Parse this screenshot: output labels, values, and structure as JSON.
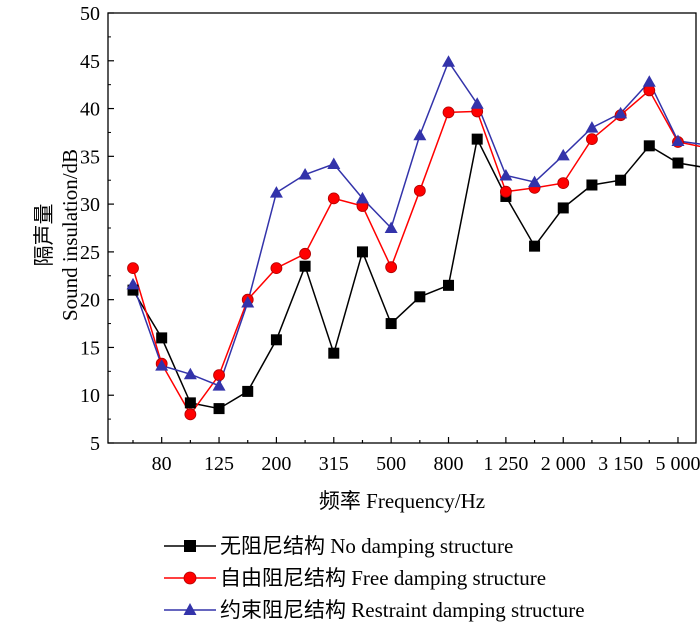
{
  "chart_data": {
    "type": "line",
    "xlabel": "频率 Frequency/Hz",
    "ylabel_line1": "隔声量",
    "ylabel_line2": "Sound insulation/dB",
    "ylim": [
      5,
      50
    ],
    "yticks": [
      5,
      10,
      15,
      20,
      25,
      30,
      35,
      40,
      45,
      50
    ],
    "x": [
      "63",
      "80",
      "100",
      "125",
      "160",
      "200",
      "250",
      "315",
      "400",
      "500",
      "630",
      "800",
      "1 000",
      "1 250",
      "1 600",
      "2 000",
      "2 500",
      "3 150",
      "4 000",
      "5 000",
      "6 300"
    ],
    "xtick_labels": [
      "",
      "80",
      "",
      "125",
      "",
      "200",
      "",
      "315",
      "",
      "500",
      "",
      "800",
      "",
      "1 250",
      "",
      "2 000",
      "",
      "3 150",
      "",
      "5 000",
      ""
    ],
    "grid": false,
    "legend_position": "bottom",
    "series": [
      {
        "name": "无阻尼结构 No damping structure",
        "color": "#000000",
        "marker": "square",
        "values": [
          21.0,
          16.0,
          9.2,
          8.6,
          10.4,
          15.8,
          23.5,
          14.4,
          25.0,
          17.5,
          20.3,
          21.5,
          36.8,
          30.8,
          25.6,
          29.6,
          32.0,
          32.5,
          36.1,
          34.3,
          33.8
        ]
      },
      {
        "name": "自由阻尼结构 Free damping structure",
        "color": "#ff0000",
        "marker": "circle",
        "values": [
          23.3,
          13.3,
          8.0,
          12.1,
          20.0,
          23.3,
          24.8,
          30.6,
          29.8,
          23.4,
          31.4,
          39.6,
          39.7,
          31.3,
          31.7,
          32.2,
          36.8,
          39.3,
          41.9,
          36.5,
          35.9
        ]
      },
      {
        "name": "约束阻尼结构 Restraint damping structure",
        "color": "#3333aa",
        "marker": "triangle",
        "values": [
          21.6,
          13.1,
          12.2,
          11.0,
          19.7,
          31.2,
          33.1,
          34.2,
          30.6,
          27.5,
          37.2,
          44.9,
          40.5,
          33.0,
          32.3,
          35.1,
          38.0,
          39.5,
          42.8,
          36.6,
          36.2
        ]
      }
    ]
  }
}
